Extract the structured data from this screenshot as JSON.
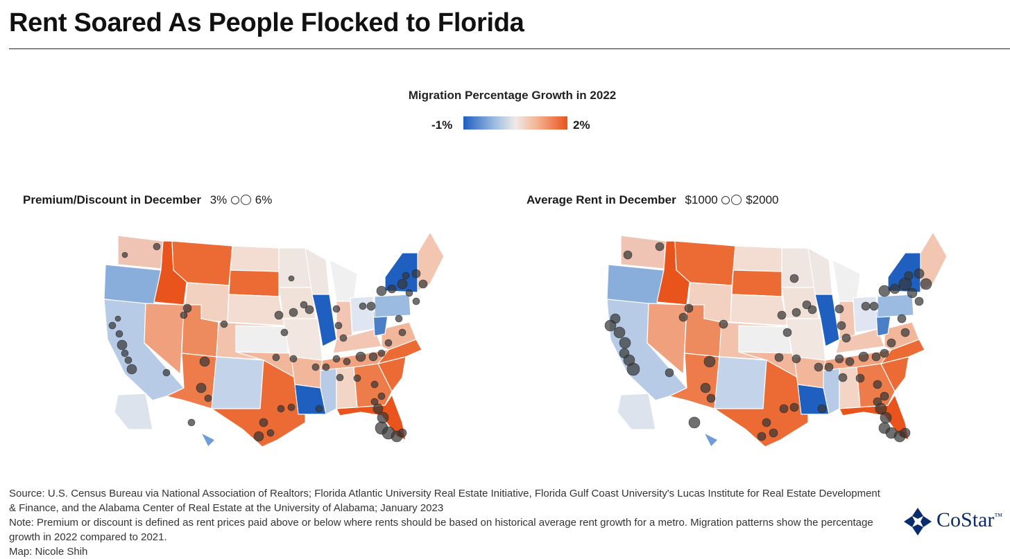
{
  "title": "Rent Soared As People Flocked to Florida",
  "legend": {
    "title": "Migration Percentage Growth in 2022",
    "min_label": "-1%",
    "max_label": "2%",
    "colors": [
      "#1f5fbf",
      "#9cbbe0",
      "#efeae7",
      "#f3b594",
      "#e9541d"
    ]
  },
  "maps": [
    {
      "title": "Premium/Discount in December",
      "size_min": "3%",
      "size_max": "6%"
    },
    {
      "title": "Average Rent in December",
      "size_min": "$1000",
      "size_max": "$2000"
    }
  ],
  "footer": {
    "source": "Source: U.S. Census Bureau via National Association of Realtors; Florida Atlantic University Real Estate Initiative, Florida Gulf Coast University's Lucas Institute for Real Estate Development & Finance, and the Alabama Center of Real Estate at the University of Alabama; January 2023",
    "note": "Note: Premium or discount is defined as rent prices paid above or below where rents should be based on historical average rent growth for a metro. Migration patterns show the percentage growth in 2022 compared to 2021.",
    "credit": "Map: Nicole Shih"
  },
  "logo": {
    "text": "CoStar",
    "trademark": "™",
    "color": "#0a2c6c"
  }
}
